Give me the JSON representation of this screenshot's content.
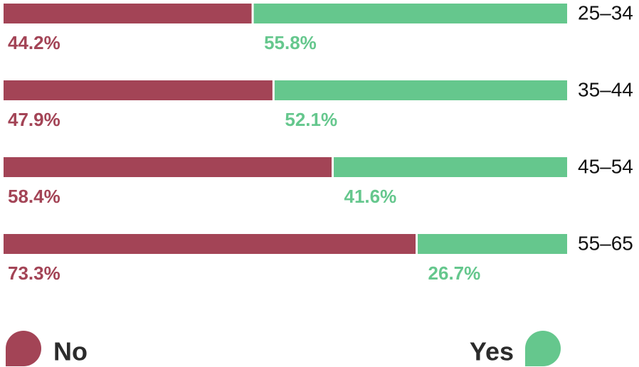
{
  "chart_data": {
    "type": "stacked-bar-horizontal",
    "categories": [
      "25–34",
      "35–44",
      "45–54",
      "55–65"
    ],
    "series": [
      {
        "name": "No",
        "color": "#a34456",
        "values": [
          44.2,
          47.9,
          58.4,
          73.3
        ],
        "value_labels": [
          "44.2%",
          "47.9%",
          "58.4%",
          "73.3%"
        ]
      },
      {
        "name": "Yes",
        "color": "#65c78d",
        "values": [
          55.8,
          52.1,
          41.6,
          26.7
        ],
        "value_labels": [
          "55.8%",
          "52.1%",
          "41.6%",
          "26.7%"
        ]
      }
    ]
  }
}
